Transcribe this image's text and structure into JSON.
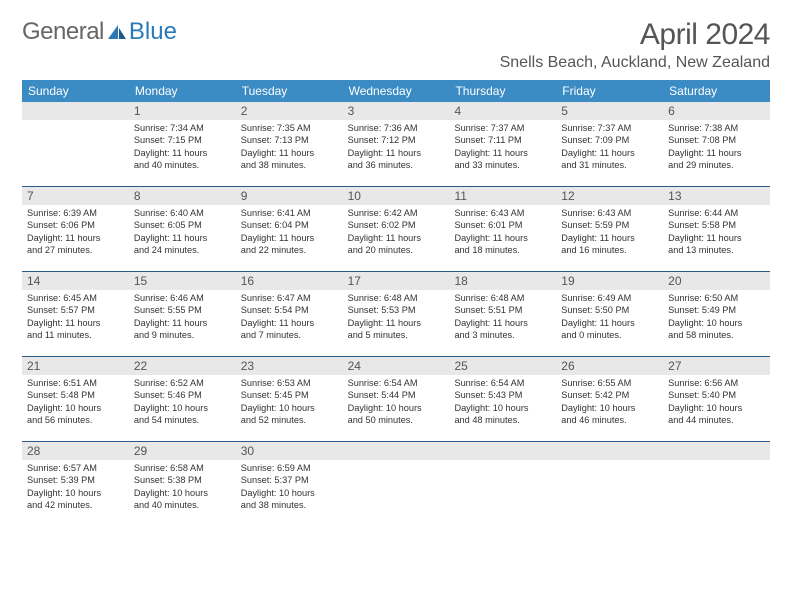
{
  "logo": {
    "text1": "General",
    "text2": "Blue"
  },
  "title": "April 2024",
  "location": "Snells Beach, Auckland, New Zealand",
  "colors": {
    "header_bg": "#3b8bc4",
    "header_text": "#ffffff",
    "daynum_bg": "#e8e8e8",
    "week_border": "#2a5a8a",
    "body_text": "#333333",
    "title_text": "#555555",
    "logo_gray": "#666666",
    "logo_blue": "#2a7ab8"
  },
  "weekdays": [
    "Sunday",
    "Monday",
    "Tuesday",
    "Wednesday",
    "Thursday",
    "Friday",
    "Saturday"
  ],
  "weeks": [
    [
      {
        "n": "",
        "lines": []
      },
      {
        "n": "1",
        "lines": [
          "Sunrise: 7:34 AM",
          "Sunset: 7:15 PM",
          "Daylight: 11 hours",
          "and 40 minutes."
        ]
      },
      {
        "n": "2",
        "lines": [
          "Sunrise: 7:35 AM",
          "Sunset: 7:13 PM",
          "Daylight: 11 hours",
          "and 38 minutes."
        ]
      },
      {
        "n": "3",
        "lines": [
          "Sunrise: 7:36 AM",
          "Sunset: 7:12 PM",
          "Daylight: 11 hours",
          "and 36 minutes."
        ]
      },
      {
        "n": "4",
        "lines": [
          "Sunrise: 7:37 AM",
          "Sunset: 7:11 PM",
          "Daylight: 11 hours",
          "and 33 minutes."
        ]
      },
      {
        "n": "5",
        "lines": [
          "Sunrise: 7:37 AM",
          "Sunset: 7:09 PM",
          "Daylight: 11 hours",
          "and 31 minutes."
        ]
      },
      {
        "n": "6",
        "lines": [
          "Sunrise: 7:38 AM",
          "Sunset: 7:08 PM",
          "Daylight: 11 hours",
          "and 29 minutes."
        ]
      }
    ],
    [
      {
        "n": "7",
        "lines": [
          "Sunrise: 6:39 AM",
          "Sunset: 6:06 PM",
          "Daylight: 11 hours",
          "and 27 minutes."
        ]
      },
      {
        "n": "8",
        "lines": [
          "Sunrise: 6:40 AM",
          "Sunset: 6:05 PM",
          "Daylight: 11 hours",
          "and 24 minutes."
        ]
      },
      {
        "n": "9",
        "lines": [
          "Sunrise: 6:41 AM",
          "Sunset: 6:04 PM",
          "Daylight: 11 hours",
          "and 22 minutes."
        ]
      },
      {
        "n": "10",
        "lines": [
          "Sunrise: 6:42 AM",
          "Sunset: 6:02 PM",
          "Daylight: 11 hours",
          "and 20 minutes."
        ]
      },
      {
        "n": "11",
        "lines": [
          "Sunrise: 6:43 AM",
          "Sunset: 6:01 PM",
          "Daylight: 11 hours",
          "and 18 minutes."
        ]
      },
      {
        "n": "12",
        "lines": [
          "Sunrise: 6:43 AM",
          "Sunset: 5:59 PM",
          "Daylight: 11 hours",
          "and 16 minutes."
        ]
      },
      {
        "n": "13",
        "lines": [
          "Sunrise: 6:44 AM",
          "Sunset: 5:58 PM",
          "Daylight: 11 hours",
          "and 13 minutes."
        ]
      }
    ],
    [
      {
        "n": "14",
        "lines": [
          "Sunrise: 6:45 AM",
          "Sunset: 5:57 PM",
          "Daylight: 11 hours",
          "and 11 minutes."
        ]
      },
      {
        "n": "15",
        "lines": [
          "Sunrise: 6:46 AM",
          "Sunset: 5:55 PM",
          "Daylight: 11 hours",
          "and 9 minutes."
        ]
      },
      {
        "n": "16",
        "lines": [
          "Sunrise: 6:47 AM",
          "Sunset: 5:54 PM",
          "Daylight: 11 hours",
          "and 7 minutes."
        ]
      },
      {
        "n": "17",
        "lines": [
          "Sunrise: 6:48 AM",
          "Sunset: 5:53 PM",
          "Daylight: 11 hours",
          "and 5 minutes."
        ]
      },
      {
        "n": "18",
        "lines": [
          "Sunrise: 6:48 AM",
          "Sunset: 5:51 PM",
          "Daylight: 11 hours",
          "and 3 minutes."
        ]
      },
      {
        "n": "19",
        "lines": [
          "Sunrise: 6:49 AM",
          "Sunset: 5:50 PM",
          "Daylight: 11 hours",
          "and 0 minutes."
        ]
      },
      {
        "n": "20",
        "lines": [
          "Sunrise: 6:50 AM",
          "Sunset: 5:49 PM",
          "Daylight: 10 hours",
          "and 58 minutes."
        ]
      }
    ],
    [
      {
        "n": "21",
        "lines": [
          "Sunrise: 6:51 AM",
          "Sunset: 5:48 PM",
          "Daylight: 10 hours",
          "and 56 minutes."
        ]
      },
      {
        "n": "22",
        "lines": [
          "Sunrise: 6:52 AM",
          "Sunset: 5:46 PM",
          "Daylight: 10 hours",
          "and 54 minutes."
        ]
      },
      {
        "n": "23",
        "lines": [
          "Sunrise: 6:53 AM",
          "Sunset: 5:45 PM",
          "Daylight: 10 hours",
          "and 52 minutes."
        ]
      },
      {
        "n": "24",
        "lines": [
          "Sunrise: 6:54 AM",
          "Sunset: 5:44 PM",
          "Daylight: 10 hours",
          "and 50 minutes."
        ]
      },
      {
        "n": "25",
        "lines": [
          "Sunrise: 6:54 AM",
          "Sunset: 5:43 PM",
          "Daylight: 10 hours",
          "and 48 minutes."
        ]
      },
      {
        "n": "26",
        "lines": [
          "Sunrise: 6:55 AM",
          "Sunset: 5:42 PM",
          "Daylight: 10 hours",
          "and 46 minutes."
        ]
      },
      {
        "n": "27",
        "lines": [
          "Sunrise: 6:56 AM",
          "Sunset: 5:40 PM",
          "Daylight: 10 hours",
          "and 44 minutes."
        ]
      }
    ],
    [
      {
        "n": "28",
        "lines": [
          "Sunrise: 6:57 AM",
          "Sunset: 5:39 PM",
          "Daylight: 10 hours",
          "and 42 minutes."
        ]
      },
      {
        "n": "29",
        "lines": [
          "Sunrise: 6:58 AM",
          "Sunset: 5:38 PM",
          "Daylight: 10 hours",
          "and 40 minutes."
        ]
      },
      {
        "n": "30",
        "lines": [
          "Sunrise: 6:59 AM",
          "Sunset: 5:37 PM",
          "Daylight: 10 hours",
          "and 38 minutes."
        ]
      },
      {
        "n": "",
        "lines": []
      },
      {
        "n": "",
        "lines": []
      },
      {
        "n": "",
        "lines": []
      },
      {
        "n": "",
        "lines": []
      }
    ]
  ]
}
